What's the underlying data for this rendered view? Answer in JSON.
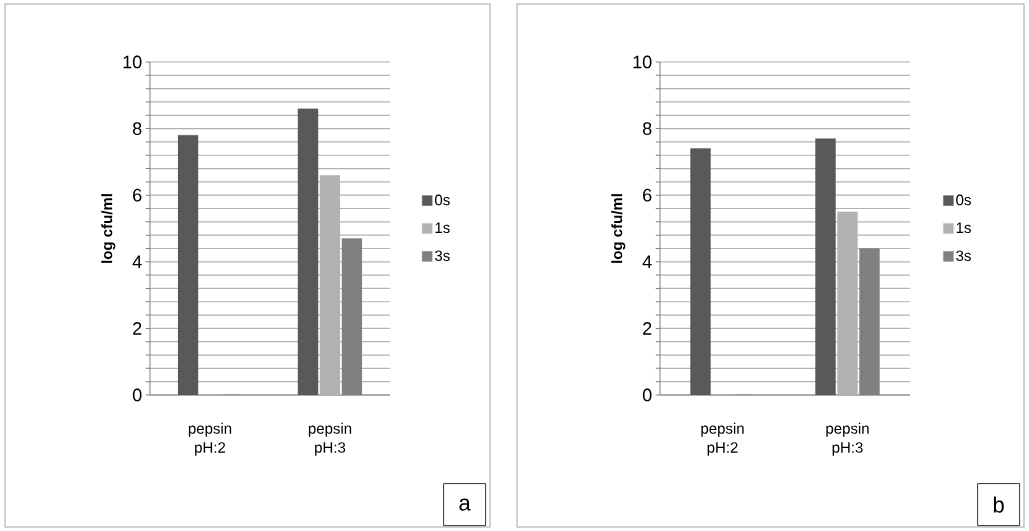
{
  "chart_data": [
    {
      "type": "bar",
      "ylabel": "log cfu/ml",
      "categories": [
        "pepsin pH:2",
        "pepsin pH:3"
      ],
      "series": [
        {
          "name": "0s",
          "color": "#595959",
          "values": [
            7.8,
            8.6
          ]
        },
        {
          "name": "1s",
          "color": "#b2b2b2",
          "values": [
            0,
            6.6
          ]
        },
        {
          "name": "3s",
          "color": "#808080",
          "values": [
            0,
            4.7
          ]
        }
      ],
      "ylim": [
        0,
        10
      ],
      "yticks": [
        0,
        {
          "value": 0.4,
          "label": null
        },
        {
          "value": 0.8,
          "label": null
        },
        {
          "value": 1.2,
          "label": null
        },
        {
          "value": 1.6,
          "label": null
        },
        2,
        {
          "value": 2.4,
          "label": null
        },
        {
          "value": 2.8,
          "label": null
        },
        {
          "value": 3.2,
          "label": null
        },
        {
          "value": 3.6,
          "label": null
        },
        4,
        {
          "value": 4.4,
          "label": null
        },
        {
          "value": 4.8,
          "label": null
        },
        {
          "value": 5.2,
          "label": null
        },
        {
          "value": 5.6,
          "label": null
        },
        6,
        {
          "value": 6.4,
          "label": null
        },
        {
          "value": 6.8,
          "label": null
        },
        {
          "value": 7.2,
          "label": null
        },
        {
          "value": 7.6,
          "label": null
        },
        8,
        {
          "value": 8.4,
          "label": null
        },
        {
          "value": 8.8,
          "label": null
        },
        {
          "value": 9.2,
          "label": null
        },
        {
          "value": 9.6,
          "label": null
        },
        10
      ],
      "grid": "y",
      "legend": "right",
      "annotations": [
        "a"
      ]
    },
    {
      "type": "bar",
      "ylabel": "log cfu/ml",
      "categories": [
        "pepsin pH:2",
        "pepsin pH:3"
      ],
      "series": [
        {
          "name": "0s",
          "color": "#595959",
          "values": [
            7.4,
            7.7
          ]
        },
        {
          "name": "1s",
          "color": "#b2b2b2",
          "values": [
            0,
            5.5
          ]
        },
        {
          "name": "3s",
          "color": "#808080",
          "values": [
            0,
            4.4
          ]
        }
      ],
      "ylim": [
        0,
        10
      ],
      "yticks": [
        0,
        {
          "value": 0.4,
          "label": null
        },
        {
          "value": 0.8,
          "label": null
        },
        {
          "value": 1.2,
          "label": null
        },
        {
          "value": 1.6,
          "label": null
        },
        2,
        {
          "value": 2.4,
          "label": null
        },
        {
          "value": 2.8,
          "label": null
        },
        {
          "value": 3.2,
          "label": null
        },
        {
          "value": 3.6,
          "label": null
        },
        4,
        {
          "value": 4.4,
          "label": null
        },
        {
          "value": 4.8,
          "label": null
        },
        {
          "value": 5.2,
          "label": null
        },
        {
          "value": 5.6,
          "label": null
        },
        6,
        {
          "value": 6.4,
          "label": null
        },
        {
          "value": 6.8,
          "label": null
        },
        {
          "value": 7.2,
          "label": null
        },
        {
          "value": 7.6,
          "label": null
        },
        8,
        {
          "value": 8.4,
          "label": null
        },
        {
          "value": 8.8,
          "label": null
        },
        {
          "value": 9.2,
          "label": null
        },
        {
          "value": 9.6,
          "label": null
        },
        10
      ],
      "grid": "y",
      "legend": "right",
      "annotations": [
        "b"
      ]
    }
  ]
}
